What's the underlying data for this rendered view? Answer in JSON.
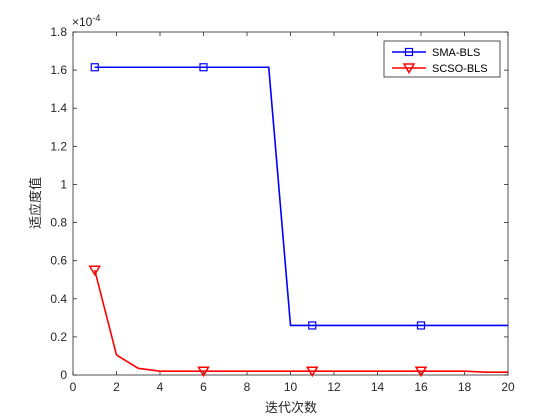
{
  "chart_data": {
    "type": "line",
    "xlabel": "迭代次数",
    "ylabel": "适应度值",
    "y_multiplier_label": "×10",
    "y_multiplier_exponent": "-4",
    "xlim": [
      0,
      20
    ],
    "ylim": [
      0,
      1.8
    ],
    "x_ticks": [
      "0",
      "2",
      "4",
      "6",
      "8",
      "10",
      "12",
      "14",
      "16",
      "18",
      "20"
    ],
    "y_ticks": [
      "0",
      "0.2",
      "0.4",
      "0.6",
      "0.8",
      "1",
      "1.2",
      "1.4",
      "1.6",
      "1.8"
    ],
    "grid": false,
    "legend_position": "top-right",
    "series": [
      {
        "name": "SMA-BLS",
        "color": "#0000ff",
        "marker": "square",
        "x": [
          1,
          2,
          3,
          4,
          5,
          6,
          7,
          8,
          9,
          10,
          11,
          12,
          13,
          14,
          15,
          16,
          17,
          18,
          19,
          20
        ],
        "values": [
          1.615,
          1.615,
          1.615,
          1.615,
          1.615,
          1.615,
          1.615,
          1.615,
          1.615,
          0.26,
          0.26,
          0.26,
          0.26,
          0.26,
          0.26,
          0.26,
          0.26,
          0.26,
          0.26,
          0.26
        ],
        "marker_indices": [
          0,
          5,
          10,
          15
        ]
      },
      {
        "name": "SCSO-BLS",
        "color": "#ff0000",
        "marker": "triangle-down",
        "x": [
          1,
          2,
          3,
          4,
          5,
          6,
          7,
          8,
          9,
          10,
          11,
          12,
          13,
          14,
          15,
          16,
          17,
          18,
          19,
          20
        ],
        "values": [
          0.55,
          0.105,
          0.035,
          0.02,
          0.02,
          0.02,
          0.02,
          0.02,
          0.02,
          0.02,
          0.02,
          0.02,
          0.02,
          0.02,
          0.02,
          0.02,
          0.02,
          0.02,
          0.015,
          0.015
        ],
        "marker_indices": [
          0,
          5,
          10,
          15
        ]
      }
    ]
  }
}
